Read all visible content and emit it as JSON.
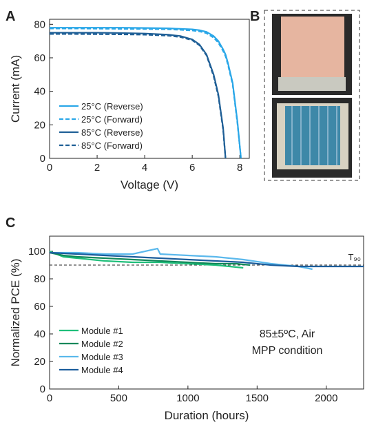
{
  "chart_data": [
    {
      "type": "line",
      "panel": "A",
      "xlabel": "Voltage (V)",
      "ylabel": "Current (mA)",
      "xlim": [
        0,
        8.4
      ],
      "xticks": [
        0,
        2,
        4,
        6,
        8
      ],
      "ylim": [
        0,
        83
      ],
      "yticks": [
        0,
        20,
        40,
        60,
        80
      ],
      "legend": "lower-left",
      "x": [
        0,
        1,
        2,
        3,
        4,
        5,
        5.5,
        6,
        6.3,
        6.6,
        6.9,
        7.1,
        7.3,
        7.4,
        7.5,
        7.7,
        7.9,
        8.05
      ],
      "series": [
        {
          "name": "25°C (Reverse)",
          "color": "#2aa7e8",
          "dash": false,
          "values": [
            78,
            78,
            78,
            78,
            77.8,
            77.6,
            77.3,
            77,
            76.5,
            75.5,
            73,
            70,
            65,
            62,
            57,
            45,
            22,
            0
          ]
        },
        {
          "name": "25°C (Forward)",
          "color": "#2aa7e8",
          "dash": true,
          "values": [
            77.5,
            77.5,
            77.4,
            77.3,
            77.2,
            77,
            76.7,
            76.3,
            75.8,
            74.7,
            72,
            69,
            64,
            61,
            56,
            44,
            21,
            0
          ]
        },
        {
          "name": "85°C (Reverse)",
          "color": "#1f5f96",
          "dash": false,
          "values": [
            75,
            75,
            75,
            74.8,
            74.5,
            73.8,
            73,
            71,
            68,
            62,
            50,
            38,
            18,
            0,
            null,
            null,
            null,
            null
          ]
        },
        {
          "name": "85°C (Forward)",
          "color": "#1f5f96",
          "dash": true,
          "values": [
            74.2,
            74.2,
            74.1,
            74,
            73.8,
            73.2,
            72.4,
            70.5,
            67.5,
            61.5,
            49,
            37,
            17,
            0,
            null,
            null,
            null,
            null
          ]
        }
      ]
    },
    {
      "type": "line",
      "panel": "C",
      "xlabel": "Duration (hours)",
      "ylabel": "Normalized PCE (%)",
      "xlim": [
        0,
        2270
      ],
      "xticks": [
        0,
        500,
        1000,
        1500,
        2000
      ],
      "ylim": [
        0,
        111
      ],
      "yticks": [
        0,
        20,
        40,
        60,
        80,
        100
      ],
      "legend": "lower-left",
      "reference_line": 90,
      "reference_label": "T₉₀",
      "annotation": [
        "85±5ºC, Air",
        "MPP condition"
      ],
      "series": [
        {
          "name": "Module #1",
          "color": "#1fbf7a",
          "dash": false,
          "x": [
            0,
            100,
            200,
            400,
            600,
            800,
            1000,
            1200,
            1300,
            1400
          ],
          "values": [
            100,
            96,
            95,
            93,
            92,
            92,
            91,
            90,
            89,
            88
          ]
        },
        {
          "name": "Module #2",
          "color": "#11885a",
          "dash": false,
          "x": [
            0,
            100,
            200,
            400,
            600,
            800,
            1000,
            1200,
            1350,
            1450
          ],
          "values": [
            99,
            97,
            96,
            95,
            94,
            93,
            92,
            91,
            91,
            90
          ]
        },
        {
          "name": "Module #3",
          "color": "#5ab8ec",
          "dash": false,
          "x": [
            0,
            200,
            400,
            600,
            780,
            800,
            1000,
            1200,
            1400,
            1600,
            1800,
            1900
          ],
          "values": [
            99,
            99,
            98,
            98,
            102,
            98,
            97,
            96,
            94,
            91,
            89,
            87
          ]
        },
        {
          "name": "Module #4",
          "color": "#1b5d9c",
          "dash": false,
          "x": [
            0,
            200,
            400,
            600,
            800,
            1000,
            1200,
            1400,
            1600,
            1800,
            2000,
            2270
          ],
          "values": [
            99,
            98,
            97,
            96,
            95,
            94,
            93,
            92,
            90,
            89,
            89,
            89
          ]
        }
      ]
    }
  ],
  "image_panel": {
    "label": "B"
  }
}
